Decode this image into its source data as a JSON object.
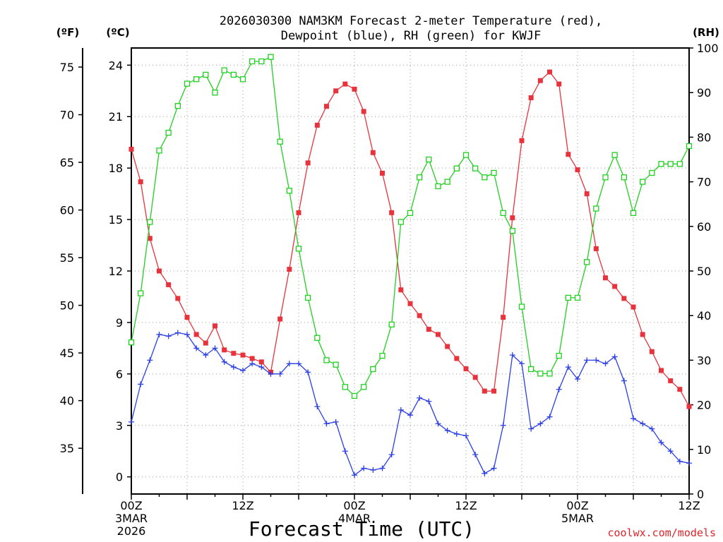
{
  "chart_data": {
    "type": "line",
    "title_line1": "2026030300 NAM3KM Forecast 2-meter Temperature (red),",
    "title_line2": "Dewpoint (blue), RH (green) for KWJF",
    "xlabel": "Forecast Time (UTC)",
    "credit": "coolwx.com/models",
    "units": {
      "fahrenheit": "(ºF)",
      "celsius": "(ºC)",
      "rh": "(RH)"
    },
    "x_range_hours": [
      0,
      60
    ],
    "celsius_range": [
      -1,
      25
    ],
    "rh_range": [
      0,
      100
    ],
    "fahrenheit_ticks": [
      "75",
      "70",
      "65",
      "60",
      "55",
      "50",
      "45",
      "40",
      "35"
    ],
    "celsius_ticks": [
      "24",
      "21",
      "18",
      "15",
      "12",
      "9",
      "6",
      "3",
      "0"
    ],
    "rh_ticks": [
      "100",
      "90",
      "80",
      "70",
      "60",
      "50",
      "40",
      "30",
      "20",
      "10",
      "0"
    ],
    "x_ticks": [
      {
        "hour": 0,
        "line1": "00Z",
        "line2": "3MAR",
        "line3": "2026"
      },
      {
        "hour": 12,
        "line1": "12Z",
        "line2": "",
        "line3": ""
      },
      {
        "hour": 24,
        "line1": "00Z",
        "line2": "4MAR",
        "line3": ""
      },
      {
        "hour": 36,
        "line1": "12Z",
        "line2": "",
        "line3": ""
      },
      {
        "hour": 48,
        "line1": "00Z",
        "line2": "5MAR",
        "line3": ""
      },
      {
        "hour": 60,
        "line1": "12Z",
        "line2": "",
        "line3": ""
      }
    ],
    "series": [
      {
        "name": "2-meter Temperature",
        "units": "C",
        "color": "#e8323c",
        "marker": "filled-square",
        "values": [
          19.1,
          17.2,
          13.9,
          12.0,
          11.2,
          10.4,
          9.3,
          8.3,
          7.8,
          8.8,
          7.4,
          7.2,
          7.1,
          6.9,
          6.7,
          6.1,
          9.2,
          12.1,
          15.4,
          18.3,
          20.5,
          21.6,
          22.5,
          22.9,
          22.6,
          21.3,
          18.9,
          17.7,
          15.4,
          10.9,
          10.1,
          9.4,
          8.6,
          8.3,
          7.6,
          6.9,
          6.3,
          5.8,
          5.0,
          5.0,
          9.3,
          15.1,
          19.6,
          22.1,
          23.1,
          23.6,
          22.9,
          18.8,
          17.9,
          16.5,
          13.3,
          11.6,
          11.1,
          10.4,
          9.9,
          8.3,
          7.3,
          6.2,
          5.6,
          5.1,
          4.1
        ]
      },
      {
        "name": "Dewpoint",
        "units": "C",
        "color": "#2a3fe6",
        "marker": "plus",
        "values": [
          3.2,
          5.4,
          6.8,
          8.3,
          8.2,
          8.4,
          8.3,
          7.5,
          7.1,
          7.5,
          6.7,
          6.4,
          6.2,
          6.6,
          6.4,
          6.0,
          6.0,
          6.6,
          6.6,
          6.1,
          4.1,
          3.1,
          3.2,
          1.5,
          0.1,
          0.5,
          0.4,
          0.5,
          1.3,
          3.9,
          3.6,
          4.6,
          4.4,
          3.1,
          2.7,
          2.5,
          2.4,
          1.3,
          0.2,
          0.5,
          3.0,
          7.1,
          6.6,
          2.8,
          3.1,
          3.5,
          5.1,
          6.4,
          5.7,
          6.8,
          6.8,
          6.6,
          7.0,
          5.6,
          3.4,
          3.1,
          2.8,
          2.0,
          1.5,
          0.9,
          0.8
        ]
      },
      {
        "name": "Relative Humidity",
        "units": "%",
        "color": "#1fd11f",
        "marker": "open-square",
        "values": [
          34,
          45,
          61,
          77,
          81,
          87,
          92,
          93,
          94,
          90,
          95,
          94,
          93,
          97,
          97,
          98,
          79,
          68,
          55,
          44,
          35,
          30,
          29,
          24,
          22,
          24,
          28,
          31,
          38,
          61,
          63,
          71,
          75,
          69,
          70,
          73,
          76,
          73,
          71,
          72,
          63,
          59,
          42,
          28,
          27,
          27,
          31,
          44,
          44,
          52,
          64,
          71,
          76,
          71,
          63,
          70,
          72,
          74,
          74,
          74,
          78
        ]
      }
    ]
  }
}
